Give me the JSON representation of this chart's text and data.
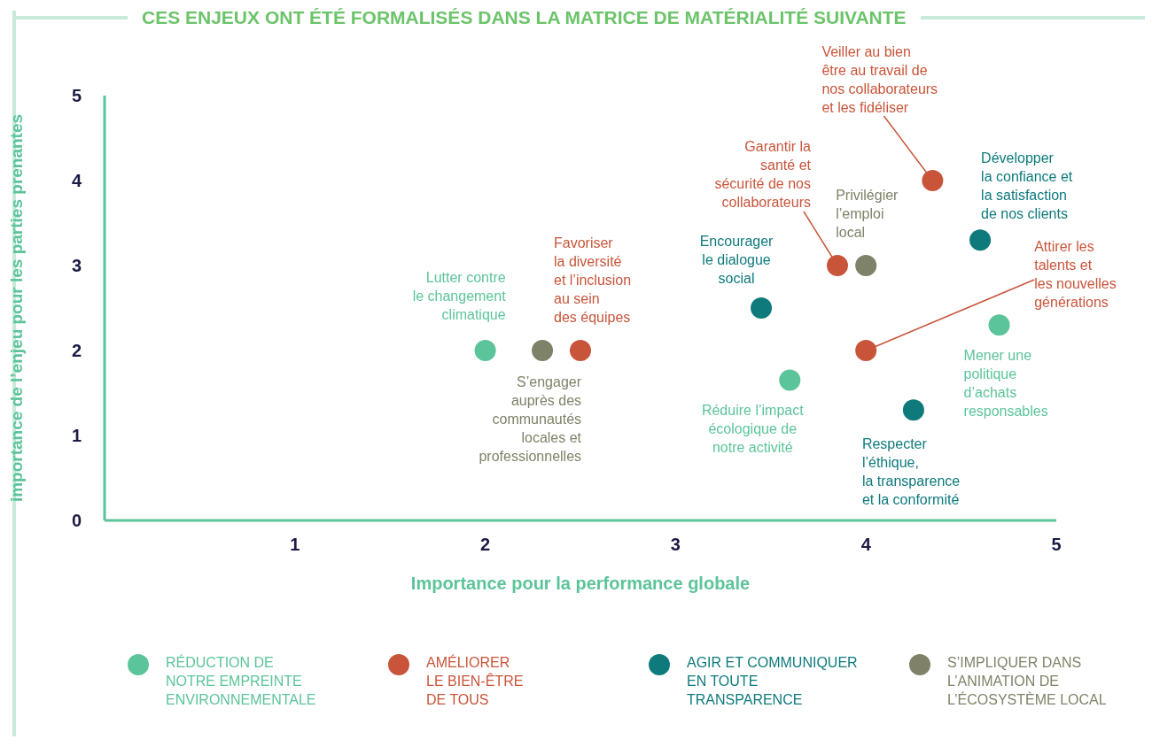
{
  "chart_data": {
    "type": "scatter",
    "title": "CES ENJEUX ONT ÉTÉ FORMALISÉS DANS LA MATRICE DE MATÉRIALITÉ SUIVANTE",
    "xlabel": "Importance pour la performance globale",
    "ylabel": "importance de l’enjeu pour les parties prenantes",
    "xlim": [
      0,
      5
    ],
    "ylim": [
      0,
      5
    ],
    "xticks": [
      1,
      2,
      3,
      4,
      5
    ],
    "yticks": [
      0,
      1,
      2,
      3,
      4,
      5
    ],
    "legend": "bottom",
    "marker": "circle",
    "series": [
      {
        "name": "RÉDUCTION DE\nNOTRE EMPREINTE\nENVIRONNEMENTALE",
        "color": "#5cc49a",
        "x": [
          2,
          3.6,
          4.7
        ],
        "values": [
          2,
          1.65,
          2.3
        ]
      },
      {
        "name": "AMÉLIORER\nLE BIEN-ÊTRE\nDE TOUS",
        "color": "#c8553a",
        "x": [
          2.5,
          3.85,
          4,
          4.35
        ],
        "values": [
          2,
          3,
          2,
          4
        ]
      },
      {
        "name": "AGIR ET COMMUNIQUER\nEN TOUTE\nTRANSPARENCE",
        "color": "#0e7a7c",
        "x": [
          3.45,
          4.6,
          4.25
        ],
        "values": [
          2.5,
          3.3,
          1.3
        ]
      },
      {
        "name": "S’IMPLIQUER DANS\nL’ANIMATION DE\nL’ÉCOSYSTÈME LOCAL",
        "color": "#7f8268",
        "x": [
          2.3,
          4
        ],
        "values": [
          2,
          3
        ]
      }
    ],
    "annotations": [
      {
        "text": "Lutter contre\nle changement\nclimatique",
        "x": 2,
        "y": 2
      },
      {
        "text": "S’engager\nauprès des\ncommunautés\nlocales et\nprofessionnelles",
        "x": 2.3,
        "y": 2
      },
      {
        "text": "Favoriser\nla diversité\net l’inclusion\nau sein\ndes équipes",
        "x": 2.5,
        "y": 2
      },
      {
        "text": "Encourager\nle dialogue\nsocial",
        "x": 3.45,
        "y": 2.5
      },
      {
        "text": "Réduire l’impact\nécologique de\nnotre activité",
        "x": 3.6,
        "y": 1.65
      },
      {
        "text": "Garantir la\nsanté et\nsécurité de nos\ncollaborateurs",
        "x": 3.85,
        "y": 3
      },
      {
        "text": "Privilégier\nl’emploi\nlocal",
        "x": 4,
        "y": 3
      },
      {
        "text": "Attirer les\ntalents et\nles nouvelles\ngénérations",
        "x": 4,
        "y": 2
      },
      {
        "text": "Veiller au bien\nêtre au travail de\nnos collaborateurs\net les fidéliser",
        "x": 4.35,
        "y": 4
      },
      {
        "text": "Développer\nla confiance et\nla satisfaction\nde nos clients",
        "x": 4.6,
        "y": 3.3
      },
      {
        "text": "Mener une\npolitique\nd’achats\nresponsables",
        "x": 4.7,
        "y": 2.3
      },
      {
        "text": "Respecter\nl’éthique,\nla transparence\net la conformité",
        "x": 4.25,
        "y": 1.3
      }
    ]
  }
}
